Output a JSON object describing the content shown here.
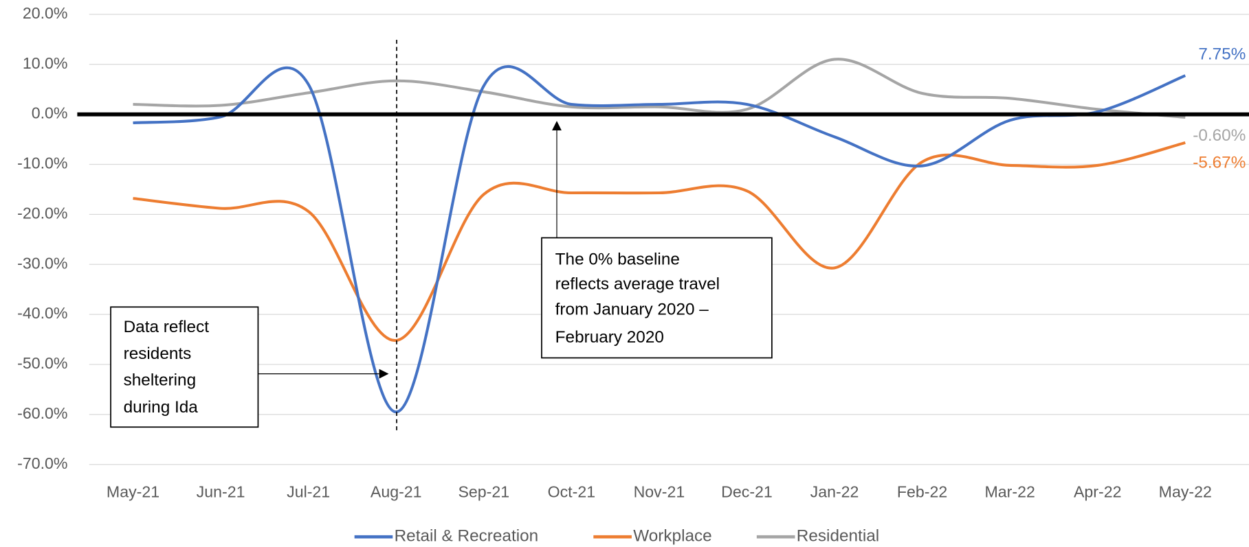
{
  "chart_data": {
    "type": "line",
    "categories": [
      "May-21",
      "Jun-21",
      "Jul-21",
      "Aug-21",
      "Sep-21",
      "Oct-21",
      "Nov-21",
      "Dec-21",
      "Jan-22",
      "Feb-22",
      "Mar-22",
      "Apr-22",
      "May-22"
    ],
    "series": [
      {
        "name": "Retail & Recreation",
        "color": "#4472c4",
        "values": [
          -1.7,
          -0.5,
          6.0,
          -59.5,
          5.7,
          2.0,
          2.0,
          2.0,
          -4.5,
          -10.3,
          -1.2,
          0.5,
          7.75
        ],
        "value_labels": [
          null,
          null,
          null,
          null,
          null,
          null,
          null,
          null,
          null,
          null,
          null,
          null,
          "7.75%"
        ]
      },
      {
        "name": "Workplace",
        "color": "#ed7d31",
        "values": [
          -16.8,
          -18.8,
          -19.4,
          -45.2,
          -16.0,
          -15.7,
          -15.7,
          -15.3,
          -30.7,
          -9.5,
          -10.2,
          -10.2,
          -5.67
        ],
        "value_labels": [
          null,
          null,
          null,
          null,
          null,
          null,
          null,
          null,
          null,
          null,
          null,
          null,
          "-5.67%"
        ]
      },
      {
        "name": "Residential",
        "color": "#a5a5a5",
        "values": [
          2.0,
          1.8,
          4.3,
          6.7,
          4.5,
          1.5,
          1.5,
          1.0,
          11.0,
          4.2,
          3.2,
          1.0,
          -0.6
        ],
        "value_labels": [
          null,
          null,
          null,
          null,
          null,
          null,
          null,
          null,
          null,
          null,
          null,
          null,
          "-0.60%"
        ]
      }
    ],
    "ylim": [
      -70,
      20
    ],
    "yticks": [
      {
        "value": 20,
        "label": "20.0%"
      },
      {
        "value": 10,
        "label": "10.0%"
      },
      {
        "value": 0,
        "label": "0.0%"
      },
      {
        "value": -10,
        "label": "-10.0%"
      },
      {
        "value": -20,
        "label": "-20.0%"
      },
      {
        "value": -30,
        "label": "-30.0%"
      },
      {
        "value": -40,
        "label": "-40.0%"
      },
      {
        "value": -50,
        "label": "-50.0%"
      },
      {
        "value": -60,
        "label": "-60.0%"
      },
      {
        "value": -70,
        "label": "-70.0%"
      }
    ],
    "grid": true,
    "legend": "bottom",
    "annotations": [
      {
        "lines": [
          "Data reflect",
          "residents",
          "sheltering",
          "during Ida"
        ]
      },
      {
        "lines": [
          "The 0% baseline",
          "reflects average travel",
          "from January 2020 –",
          "February 2020"
        ]
      }
    ]
  }
}
